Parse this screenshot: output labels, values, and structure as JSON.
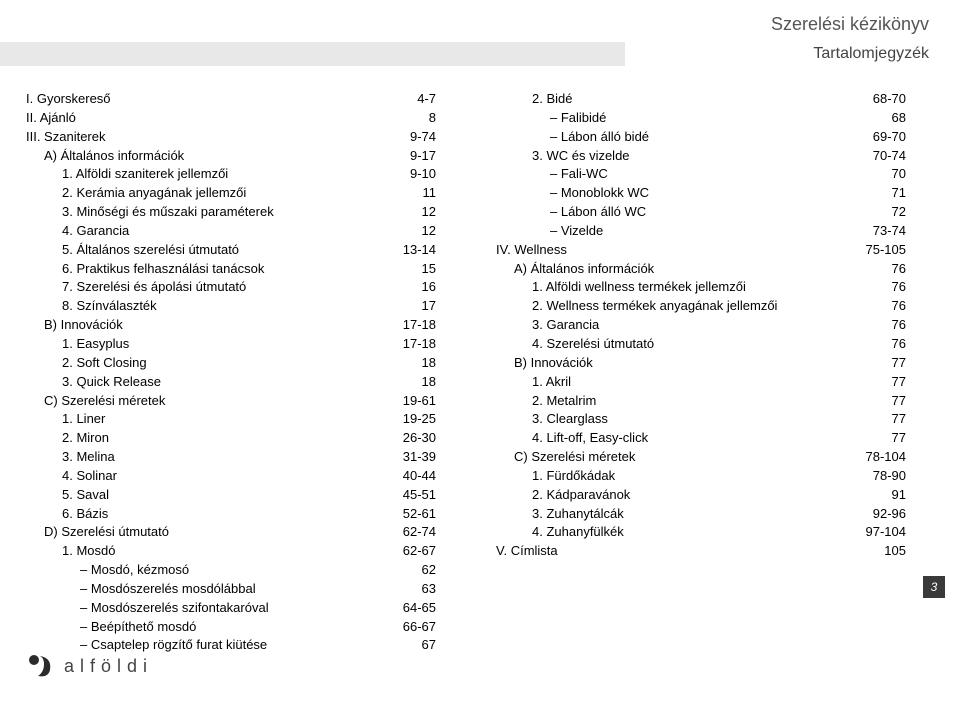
{
  "header": {
    "title": "Szerelési kézikönyv",
    "subtitle": "Tartalomjegyzék"
  },
  "pageNumber": "3",
  "logoText": "alföldi",
  "left": [
    {
      "cls": "",
      "label": "I. Gyorskereső",
      "page": "4-7"
    },
    {
      "cls": "",
      "label": "II. Ajánló",
      "page": "8"
    },
    {
      "cls": "",
      "label": "III. Szaniterek",
      "page": "9-74"
    },
    {
      "cls": "ind1",
      "label": "A) Általános információk",
      "page": "9-17"
    },
    {
      "cls": "ind2",
      "label": "1. Alföldi szaniterek jellemzői",
      "page": "9-10"
    },
    {
      "cls": "ind2",
      "label": "2. Kerámia anyagának jellemzői",
      "page": "11"
    },
    {
      "cls": "ind2",
      "label": "3. Minőségi és műszaki paraméterek",
      "page": "12"
    },
    {
      "cls": "ind2",
      "label": "4. Garancia",
      "page": "12"
    },
    {
      "cls": "ind2",
      "label": "5. Általános szerelési útmutató",
      "page": "13-14"
    },
    {
      "cls": "ind2",
      "label": "6. Praktikus felhasználási tanácsok",
      "page": "15"
    },
    {
      "cls": "ind2",
      "label": "7. Szerelési és ápolási útmutató",
      "page": "16"
    },
    {
      "cls": "ind2",
      "label": "8. Színválaszték",
      "page": "17"
    },
    {
      "cls": "ind1",
      "label": "B) Innovációk",
      "page": "17-18"
    },
    {
      "cls": "ind2",
      "label": "1. Easyplus",
      "page": "17-18"
    },
    {
      "cls": "ind2",
      "label": "2. Soft Closing",
      "page": "18"
    },
    {
      "cls": "ind2",
      "label": "3. Quick Release",
      "page": "18"
    },
    {
      "cls": "ind1",
      "label": "C) Szerelési méretek",
      "page": "19-61"
    },
    {
      "cls": "ind2",
      "label": "1. Liner",
      "page": "19-25"
    },
    {
      "cls": "ind2",
      "label": "2. Miron",
      "page": "26-30"
    },
    {
      "cls": "ind2",
      "label": "3. Melina",
      "page": "31-39"
    },
    {
      "cls": "ind2",
      "label": "4. Solinar",
      "page": "40-44"
    },
    {
      "cls": "ind2",
      "label": "5. Saval",
      "page": "45-51"
    },
    {
      "cls": "ind2",
      "label": "6. Bázis",
      "page": "52-61"
    },
    {
      "cls": "ind1",
      "label": "D) Szerelési útmutató",
      "page": "62-74"
    },
    {
      "cls": "ind2",
      "label": "1. Mosdó",
      "page": "62-67"
    },
    {
      "cls": "ind3",
      "label": "– Mosdó, kézmosó",
      "page": "62"
    },
    {
      "cls": "ind3",
      "label": "– Mosdószerelés mosdólábbal",
      "page": "63"
    },
    {
      "cls": "ind3",
      "label": "– Mosdószerelés szifontakaróval",
      "page": "64-65"
    },
    {
      "cls": "ind3",
      "label": "– Beépíthető mosdó",
      "page": "66-67"
    },
    {
      "cls": "ind3",
      "label": "– Csaptelep rögzítő furat kiütése",
      "page": "67"
    }
  ],
  "right": [
    {
      "cls": "ind2",
      "label": "2. Bidé",
      "page": "68-70"
    },
    {
      "cls": "ind3",
      "label": "– Falibidé",
      "page": "68"
    },
    {
      "cls": "ind3",
      "label": "– Lábon álló bidé",
      "page": "69-70"
    },
    {
      "cls": "ind2",
      "label": "3. WC és vizelde",
      "page": "70-74"
    },
    {
      "cls": "ind3",
      "label": "– Fali-WC",
      "page": "70"
    },
    {
      "cls": "ind3",
      "label": "– Monoblokk WC",
      "page": "71"
    },
    {
      "cls": "ind3",
      "label": "– Lábon álló WC",
      "page": "72"
    },
    {
      "cls": "ind3",
      "label": "– Vizelde",
      "page": "73-74"
    },
    {
      "cls": "",
      "label": "IV. Wellness",
      "page": "75-105"
    },
    {
      "cls": "ind1",
      "label": "A) Általános információk",
      "page": "76"
    },
    {
      "cls": "ind2",
      "label": "1. Alföldi wellness termékek jellemzői",
      "page": "76"
    },
    {
      "cls": "ind2",
      "label": "2. Wellness termékek anyagának jellemzői",
      "page": "76"
    },
    {
      "cls": "ind2",
      "label": "3. Garancia",
      "page": "76"
    },
    {
      "cls": "ind2",
      "label": "4. Szerelési útmutató",
      "page": "76"
    },
    {
      "cls": "ind1",
      "label": "B) Innovációk",
      "page": "77"
    },
    {
      "cls": "ind2",
      "label": "1. Akril",
      "page": "77"
    },
    {
      "cls": "ind2",
      "label": "2. Metalrim",
      "page": "77"
    },
    {
      "cls": "ind2",
      "label": "3. Clearglass",
      "page": "77"
    },
    {
      "cls": "ind2",
      "label": "4. Lift-off, Easy-click",
      "page": "77"
    },
    {
      "cls": "ind1",
      "label": "C) Szerelési méretek",
      "page": "78-104"
    },
    {
      "cls": "ind2",
      "label": "1. Fürdőkádak",
      "page": "78-90"
    },
    {
      "cls": "ind2",
      "label": "2. Kádparavánok",
      "page": "91"
    },
    {
      "cls": "ind2",
      "label": "3. Zuhanytálcák",
      "page": "92-96"
    },
    {
      "cls": "ind2",
      "label": "4. Zuhanyfülkék",
      "page": "97-104"
    },
    {
      "cls": "",
      "label": "V. Címlista",
      "page": "105"
    }
  ]
}
